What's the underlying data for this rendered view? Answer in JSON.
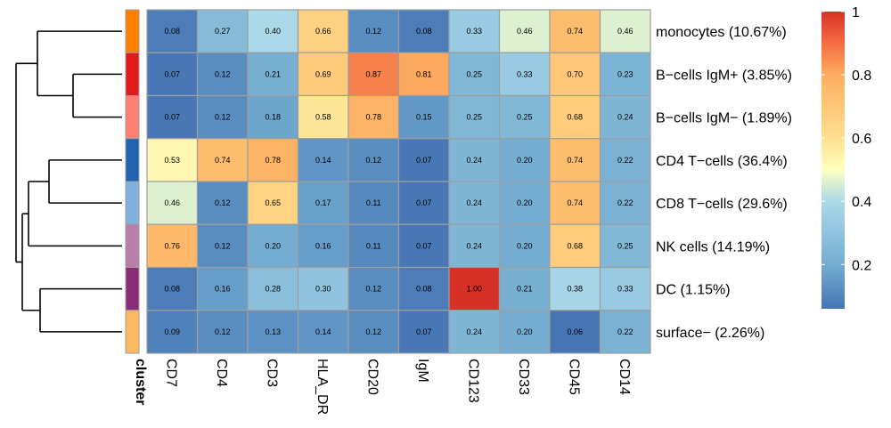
{
  "chart_data": {
    "type": "heatmap",
    "columns": [
      "CD7",
      "CD4",
      "CD3",
      "HLA_DR",
      "CD20",
      "IgM",
      "CD123",
      "CD33",
      "CD45",
      "CD14"
    ],
    "rows": [
      {
        "label": "monocytes (10.67%)",
        "cluster_color": "#ff7f00",
        "values": [
          0.08,
          0.27,
          0.4,
          0.66,
          0.12,
          0.08,
          0.33,
          0.46,
          0.74,
          0.46
        ]
      },
      {
        "label": "B−cells IgM+ (3.85%)",
        "cluster_color": "#e31a1c",
        "values": [
          0.07,
          0.12,
          0.21,
          0.69,
          0.87,
          0.81,
          0.25,
          0.33,
          0.7,
          0.23
        ]
      },
      {
        "label": "B−cells IgM− (1.89%)",
        "cluster_color": "#fb8072",
        "values": [
          0.07,
          0.12,
          0.18,
          0.58,
          0.78,
          0.15,
          0.25,
          0.25,
          0.68,
          0.24
        ]
      },
      {
        "label": "CD4 T−cells (36.4%)",
        "cluster_color": "#1f63b0",
        "values": [
          0.53,
          0.74,
          0.78,
          0.14,
          0.12,
          0.07,
          0.24,
          0.2,
          0.74,
          0.22
        ]
      },
      {
        "label": "CD8 T−cells (29.6%)",
        "cluster_color": "#7fb1dd",
        "values": [
          0.46,
          0.12,
          0.65,
          0.17,
          0.11,
          0.07,
          0.24,
          0.2,
          0.74,
          0.22
        ]
      },
      {
        "label": "NK cells (14.19%)",
        "cluster_color": "#b77fa9",
        "values": [
          0.76,
          0.12,
          0.2,
          0.16,
          0.11,
          0.07,
          0.24,
          0.2,
          0.68,
          0.25
        ]
      },
      {
        "label": "DC (1.15%)",
        "cluster_color": "#8b2c76",
        "values": [
          0.08,
          0.16,
          0.28,
          0.3,
          0.12,
          0.08,
          1.0,
          0.21,
          0.38,
          0.33
        ]
      },
      {
        "label": "surface− (2.26%)",
        "cluster_color": "#fdb95f",
        "values": [
          0.09,
          0.12,
          0.13,
          0.14,
          0.12,
          0.07,
          0.24,
          0.2,
          0.06,
          0.22
        ]
      }
    ],
    "cluster_label": "cluster",
    "color_scale": {
      "min": 0.06,
      "max": 1,
      "stops": [
        {
          "value": 0.06,
          "color": "#4575b4"
        },
        {
          "value": 0.2,
          "color": "#74add1"
        },
        {
          "value": 0.4,
          "color": "#abd9e9"
        },
        {
          "value": 0.5,
          "color": "#ffffbf"
        },
        {
          "value": 0.6,
          "color": "#fee090"
        },
        {
          "value": 0.8,
          "color": "#fdae61"
        },
        {
          "value": 0.9,
          "color": "#f46d43"
        },
        {
          "value": 1.0,
          "color": "#d73027"
        }
      ],
      "legend_ticks": [
        "0.2",
        "0.4",
        "0.6",
        "0.8",
        "1"
      ]
    },
    "row_dendrogram": true,
    "cell_border_color": "#9e9e9e"
  }
}
